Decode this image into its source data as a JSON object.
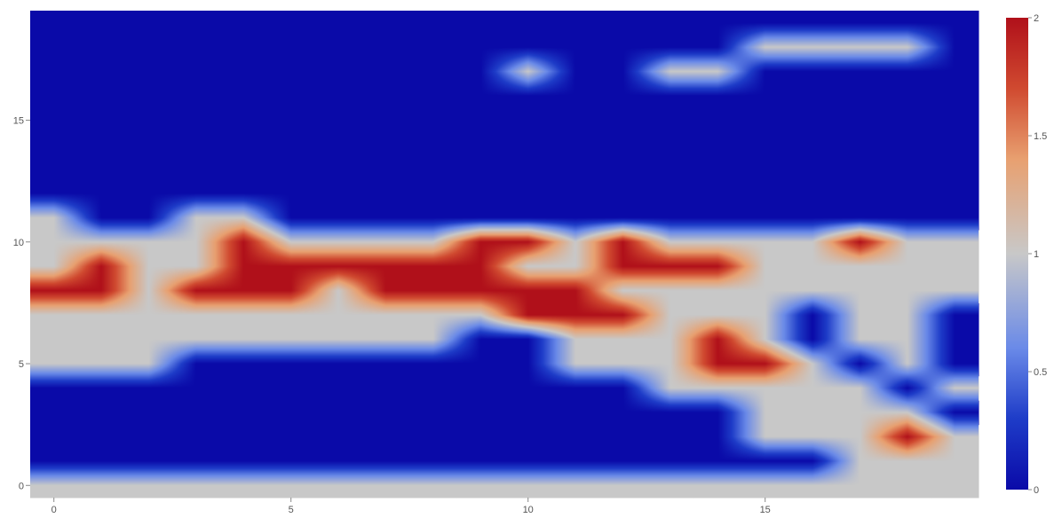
{
  "chart_data": {
    "type": "heatmap",
    "title": "",
    "xlabel": "",
    "ylabel": "",
    "x_range": [
      -0.5,
      19.5
    ],
    "y_range": [
      -0.5,
      19.5
    ],
    "x_ticks": [
      0,
      5,
      10,
      15
    ],
    "y_ticks": [
      0,
      5,
      10,
      15
    ],
    "x_tick_labels": [
      "0",
      "5",
      "10",
      "15"
    ],
    "y_tick_labels": [
      "0",
      "5",
      "10",
      "15"
    ],
    "zmin": 0,
    "zmax": 2,
    "zsmooth": "best",
    "colorscale": [
      [
        0,
        "#0a0aa8"
      ],
      [
        0.15,
        "#1e3cc8"
      ],
      [
        0.3,
        "#6a8ae8"
      ],
      [
        0.5,
        "#c8c8c8"
      ],
      [
        0.7,
        "#e8a070"
      ],
      [
        0.85,
        "#d04a30"
      ],
      [
        1,
        "#b0101a"
      ]
    ],
    "colorbar": {
      "ticks": [
        0,
        0.5,
        1,
        1.5,
        2
      ],
      "tick_labels": [
        "0",
        "0.5",
        "1",
        "1.5",
        "2"
      ]
    },
    "z": [
      [
        1,
        1,
        1,
        1,
        1,
        1,
        1,
        1,
        1,
        1,
        1,
        1,
        1,
        1,
        1,
        1,
        1,
        1,
        1,
        1
      ],
      [
        0,
        0,
        0,
        0,
        0,
        0,
        0,
        0,
        0,
        0,
        0,
        0,
        0,
        0,
        0,
        0,
        0,
        1,
        1,
        1
      ],
      [
        0,
        0,
        0,
        0,
        0,
        0,
        0,
        0,
        0,
        0,
        0,
        0,
        0,
        0,
        0,
        1,
        1,
        1,
        2,
        1
      ],
      [
        0,
        0,
        0,
        0,
        0,
        0,
        0,
        0,
        0,
        0,
        0,
        0,
        0,
        0,
        0,
        1,
        1,
        1,
        1,
        0
      ],
      [
        0,
        0,
        0,
        0,
        0,
        0,
        0,
        0,
        0,
        0,
        0,
        0,
        0,
        1,
        1,
        1,
        1,
        1,
        0,
        1
      ],
      [
        1,
        1,
        1,
        0,
        0,
        0,
        0,
        0,
        0,
        0,
        0,
        1,
        1,
        1,
        2,
        2,
        1,
        0,
        1,
        0
      ],
      [
        1,
        1,
        1,
        1,
        1,
        1,
        1,
        1,
        1,
        0,
        0,
        1,
        1,
        1,
        2,
        1,
        0,
        1,
        1,
        0
      ],
      [
        1,
        1,
        1,
        1,
        1,
        1,
        1,
        1,
        1,
        1,
        2,
        2,
        2,
        1,
        1,
        1,
        0,
        1,
        1,
        0
      ],
      [
        2,
        2,
        1,
        2,
        2,
        2,
        1,
        2,
        2,
        2,
        2,
        2,
        1,
        1,
        1,
        1,
        1,
        1,
        1,
        1
      ],
      [
        1,
        2,
        1,
        1,
        2,
        2,
        2,
        2,
        2,
        2,
        1,
        1,
        2,
        2,
        2,
        1,
        1,
        1,
        1,
        1
      ],
      [
        1,
        1,
        1,
        1,
        2,
        1,
        1,
        1,
        1,
        2,
        2,
        1,
        2,
        1,
        1,
        1,
        1,
        2,
        1,
        1
      ],
      [
        1,
        0,
        0,
        1,
        1,
        0,
        0,
        0,
        0,
        0,
        0,
        0,
        0,
        0,
        0,
        0,
        0,
        0,
        0,
        0
      ],
      [
        0,
        0,
        0,
        0,
        0,
        0,
        0,
        0,
        0,
        0,
        0,
        0,
        0,
        0,
        0,
        0,
        0,
        0,
        0,
        0
      ],
      [
        0,
        0,
        0,
        0,
        0,
        0,
        0,
        0,
        0,
        0,
        0,
        0,
        0,
        0,
        0,
        0,
        0,
        0,
        0,
        0
      ],
      [
        0,
        0,
        0,
        0,
        0,
        0,
        0,
        0,
        0,
        0,
        0,
        0,
        0,
        0,
        0,
        0,
        0,
        0,
        0,
        0
      ],
      [
        0,
        0,
        0,
        0,
        0,
        0,
        0,
        0,
        0,
        0,
        0,
        0,
        0,
        0,
        0,
        0,
        0,
        0,
        0,
        0
      ],
      [
        0,
        0,
        0,
        0,
        0,
        0,
        0,
        0,
        0,
        0,
        0,
        0,
        0,
        0,
        0,
        0,
        0,
        0,
        0,
        0
      ],
      [
        0,
        0,
        0,
        0,
        0,
        0,
        0,
        0,
        0,
        0,
        1,
        0,
        0,
        1,
        1,
        0,
        0,
        0,
        0,
        0
      ],
      [
        0,
        0,
        0,
        0,
        0,
        0,
        0,
        0,
        0,
        0,
        0,
        0,
        0,
        0,
        0,
        1,
        1,
        1,
        1,
        0
      ],
      [
        0,
        0,
        0,
        0,
        0,
        0,
        0,
        0,
        0,
        0,
        0,
        0,
        0,
        0,
        0,
        0,
        0,
        0,
        0,
        0
      ]
    ]
  }
}
